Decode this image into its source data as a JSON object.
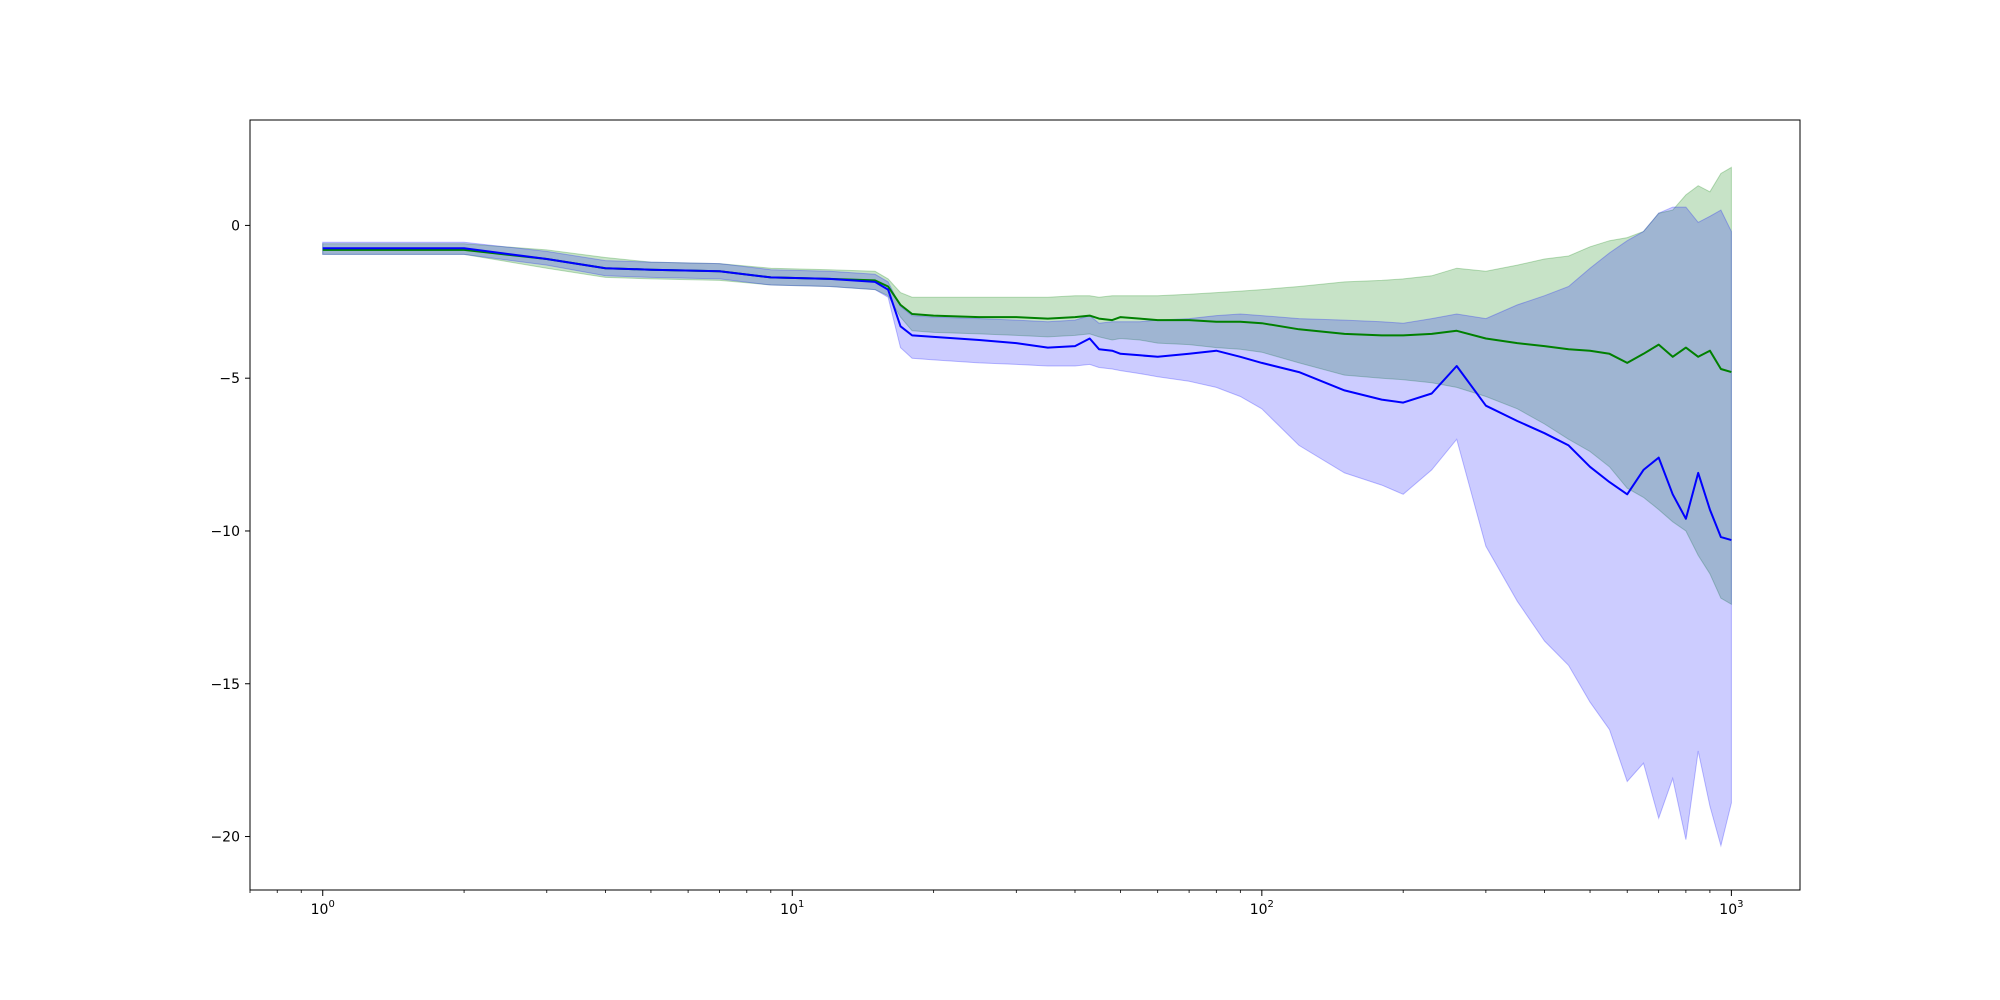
{
  "chart_data": {
    "type": "line",
    "title": "",
    "xlabel": "",
    "ylabel": "",
    "xscale": "log",
    "xlim": [
      0.7,
      1400
    ],
    "ylim": [
      -21.75,
      3.45
    ],
    "grid": false,
    "legend": "none",
    "x_ticks": [
      {
        "base": "10",
        "exp": "0",
        "value": 1
      },
      {
        "base": "10",
        "exp": "1",
        "value": 10
      },
      {
        "base": "10",
        "exp": "2",
        "value": 100
      },
      {
        "base": "10",
        "exp": "3",
        "value": 1000
      }
    ],
    "y_ticks": [
      {
        "label": "0",
        "value": 0
      },
      {
        "label": "−5",
        "value": -5
      },
      {
        "label": "−10",
        "value": -10
      },
      {
        "label": "−15",
        "value": -15
      },
      {
        "label": "−20",
        "value": -20
      }
    ],
    "x": [
      1,
      2,
      3,
      4,
      5,
      7,
      9,
      12,
      15,
      16,
      17,
      18,
      20,
      25,
      30,
      35,
      40,
      43,
      45,
      48,
      50,
      55,
      60,
      70,
      80,
      90,
      100,
      120,
      150,
      180,
      200,
      230,
      260,
      300,
      350,
      400,
      450,
      500,
      550,
      600,
      650,
      700,
      750,
      800,
      850,
      900,
      950,
      1000
    ],
    "series": [
      {
        "color": "#008000",
        "band_color": "#008000",
        "band_opacity": 0.22,
        "values": [
          -0.8,
          -0.8,
          -1.1,
          -1.4,
          -1.45,
          -1.5,
          -1.7,
          -1.75,
          -1.8,
          -2.0,
          -2.6,
          -2.9,
          -2.95,
          -3.0,
          -3.0,
          -3.05,
          -3.0,
          -2.95,
          -3.05,
          -3.1,
          -3.0,
          -3.05,
          -3.1,
          -3.1,
          -3.15,
          -3.15,
          -3.2,
          -3.4,
          -3.55,
          -3.6,
          -3.6,
          -3.55,
          -3.45,
          -3.7,
          -3.85,
          -3.95,
          -4.05,
          -4.1,
          -4.2,
          -4.5,
          -4.2,
          -3.9,
          -4.3,
          -4.0,
          -4.3,
          -4.1,
          -4.7,
          -4.8
        ],
        "upper": [
          -0.6,
          -0.6,
          -0.8,
          -1.05,
          -1.2,
          -1.25,
          -1.4,
          -1.45,
          -1.5,
          -1.75,
          -2.2,
          -2.35,
          -2.35,
          -2.35,
          -2.35,
          -2.35,
          -2.3,
          -2.3,
          -2.35,
          -2.3,
          -2.3,
          -2.3,
          -2.3,
          -2.25,
          -2.2,
          -2.15,
          -2.1,
          -2.0,
          -1.85,
          -1.8,
          -1.75,
          -1.65,
          -1.4,
          -1.5,
          -1.3,
          -1.1,
          -1.0,
          -0.7,
          -0.5,
          -0.4,
          -0.2,
          0.4,
          0.5,
          1.0,
          1.3,
          1.1,
          1.7,
          1.9
        ],
        "lower": [
          -0.95,
          -0.95,
          -1.4,
          -1.7,
          -1.75,
          -1.8,
          -1.95,
          -2.0,
          -2.1,
          -2.3,
          -3.0,
          -3.45,
          -3.5,
          -3.55,
          -3.6,
          -3.65,
          -3.6,
          -3.55,
          -3.65,
          -3.75,
          -3.7,
          -3.75,
          -3.85,
          -3.9,
          -4.0,
          -4.05,
          -4.15,
          -4.5,
          -4.9,
          -5.0,
          -5.05,
          -5.15,
          -5.3,
          -5.6,
          -6.0,
          -6.5,
          -7.0,
          -7.4,
          -7.9,
          -8.6,
          -8.9,
          -9.3,
          -9.7,
          -10.0,
          -10.8,
          -11.4,
          -12.2,
          -12.4
        ]
      },
      {
        "color": "#0000ff",
        "band_color": "#0000ff",
        "band_opacity": 0.2,
        "values": [
          -0.75,
          -0.75,
          -1.1,
          -1.4,
          -1.45,
          -1.5,
          -1.7,
          -1.75,
          -1.85,
          -2.1,
          -3.3,
          -3.6,
          -3.65,
          -3.75,
          -3.85,
          -4.0,
          -3.95,
          -3.7,
          -4.05,
          -4.1,
          -4.2,
          -4.25,
          -4.3,
          -4.2,
          -4.1,
          -4.3,
          -4.5,
          -4.8,
          -5.4,
          -5.7,
          -5.8,
          -5.5,
          -4.6,
          -5.9,
          -6.4,
          -6.8,
          -7.2,
          -7.9,
          -8.4,
          -8.8,
          -8.0,
          -7.6,
          -8.8,
          -9.6,
          -8.1,
          -9.3,
          -10.2,
          -10.3
        ],
        "upper": [
          -0.55,
          -0.55,
          -0.85,
          -1.15,
          -1.2,
          -1.25,
          -1.45,
          -1.5,
          -1.6,
          -1.85,
          -2.65,
          -2.95,
          -3.0,
          -3.05,
          -3.1,
          -3.15,
          -3.1,
          -2.95,
          -3.2,
          -3.15,
          -3.15,
          -3.15,
          -3.1,
          -3.05,
          -2.95,
          -2.9,
          -2.95,
          -3.05,
          -3.1,
          -3.15,
          -3.2,
          -3.05,
          -2.9,
          -3.05,
          -2.6,
          -2.3,
          -2.0,
          -1.4,
          -0.9,
          -0.5,
          -0.2,
          0.4,
          0.6,
          0.6,
          0.1,
          0.3,
          0.5,
          -0.2
        ],
        "lower": [
          -0.95,
          -0.95,
          -1.3,
          -1.65,
          -1.7,
          -1.75,
          -1.95,
          -2.0,
          -2.1,
          -2.35,
          -4.0,
          -4.35,
          -4.4,
          -4.5,
          -4.55,
          -4.6,
          -4.6,
          -4.55,
          -4.65,
          -4.7,
          -4.75,
          -4.85,
          -4.95,
          -5.1,
          -5.3,
          -5.6,
          -6.0,
          -7.2,
          -8.1,
          -8.5,
          -8.8,
          -8.0,
          -7.0,
          -10.5,
          -12.3,
          -13.6,
          -14.4,
          -15.6,
          -16.5,
          -18.2,
          -17.6,
          -19.4,
          -18.1,
          -20.1,
          -17.2,
          -19.0,
          -20.3,
          -18.9
        ]
      }
    ]
  }
}
